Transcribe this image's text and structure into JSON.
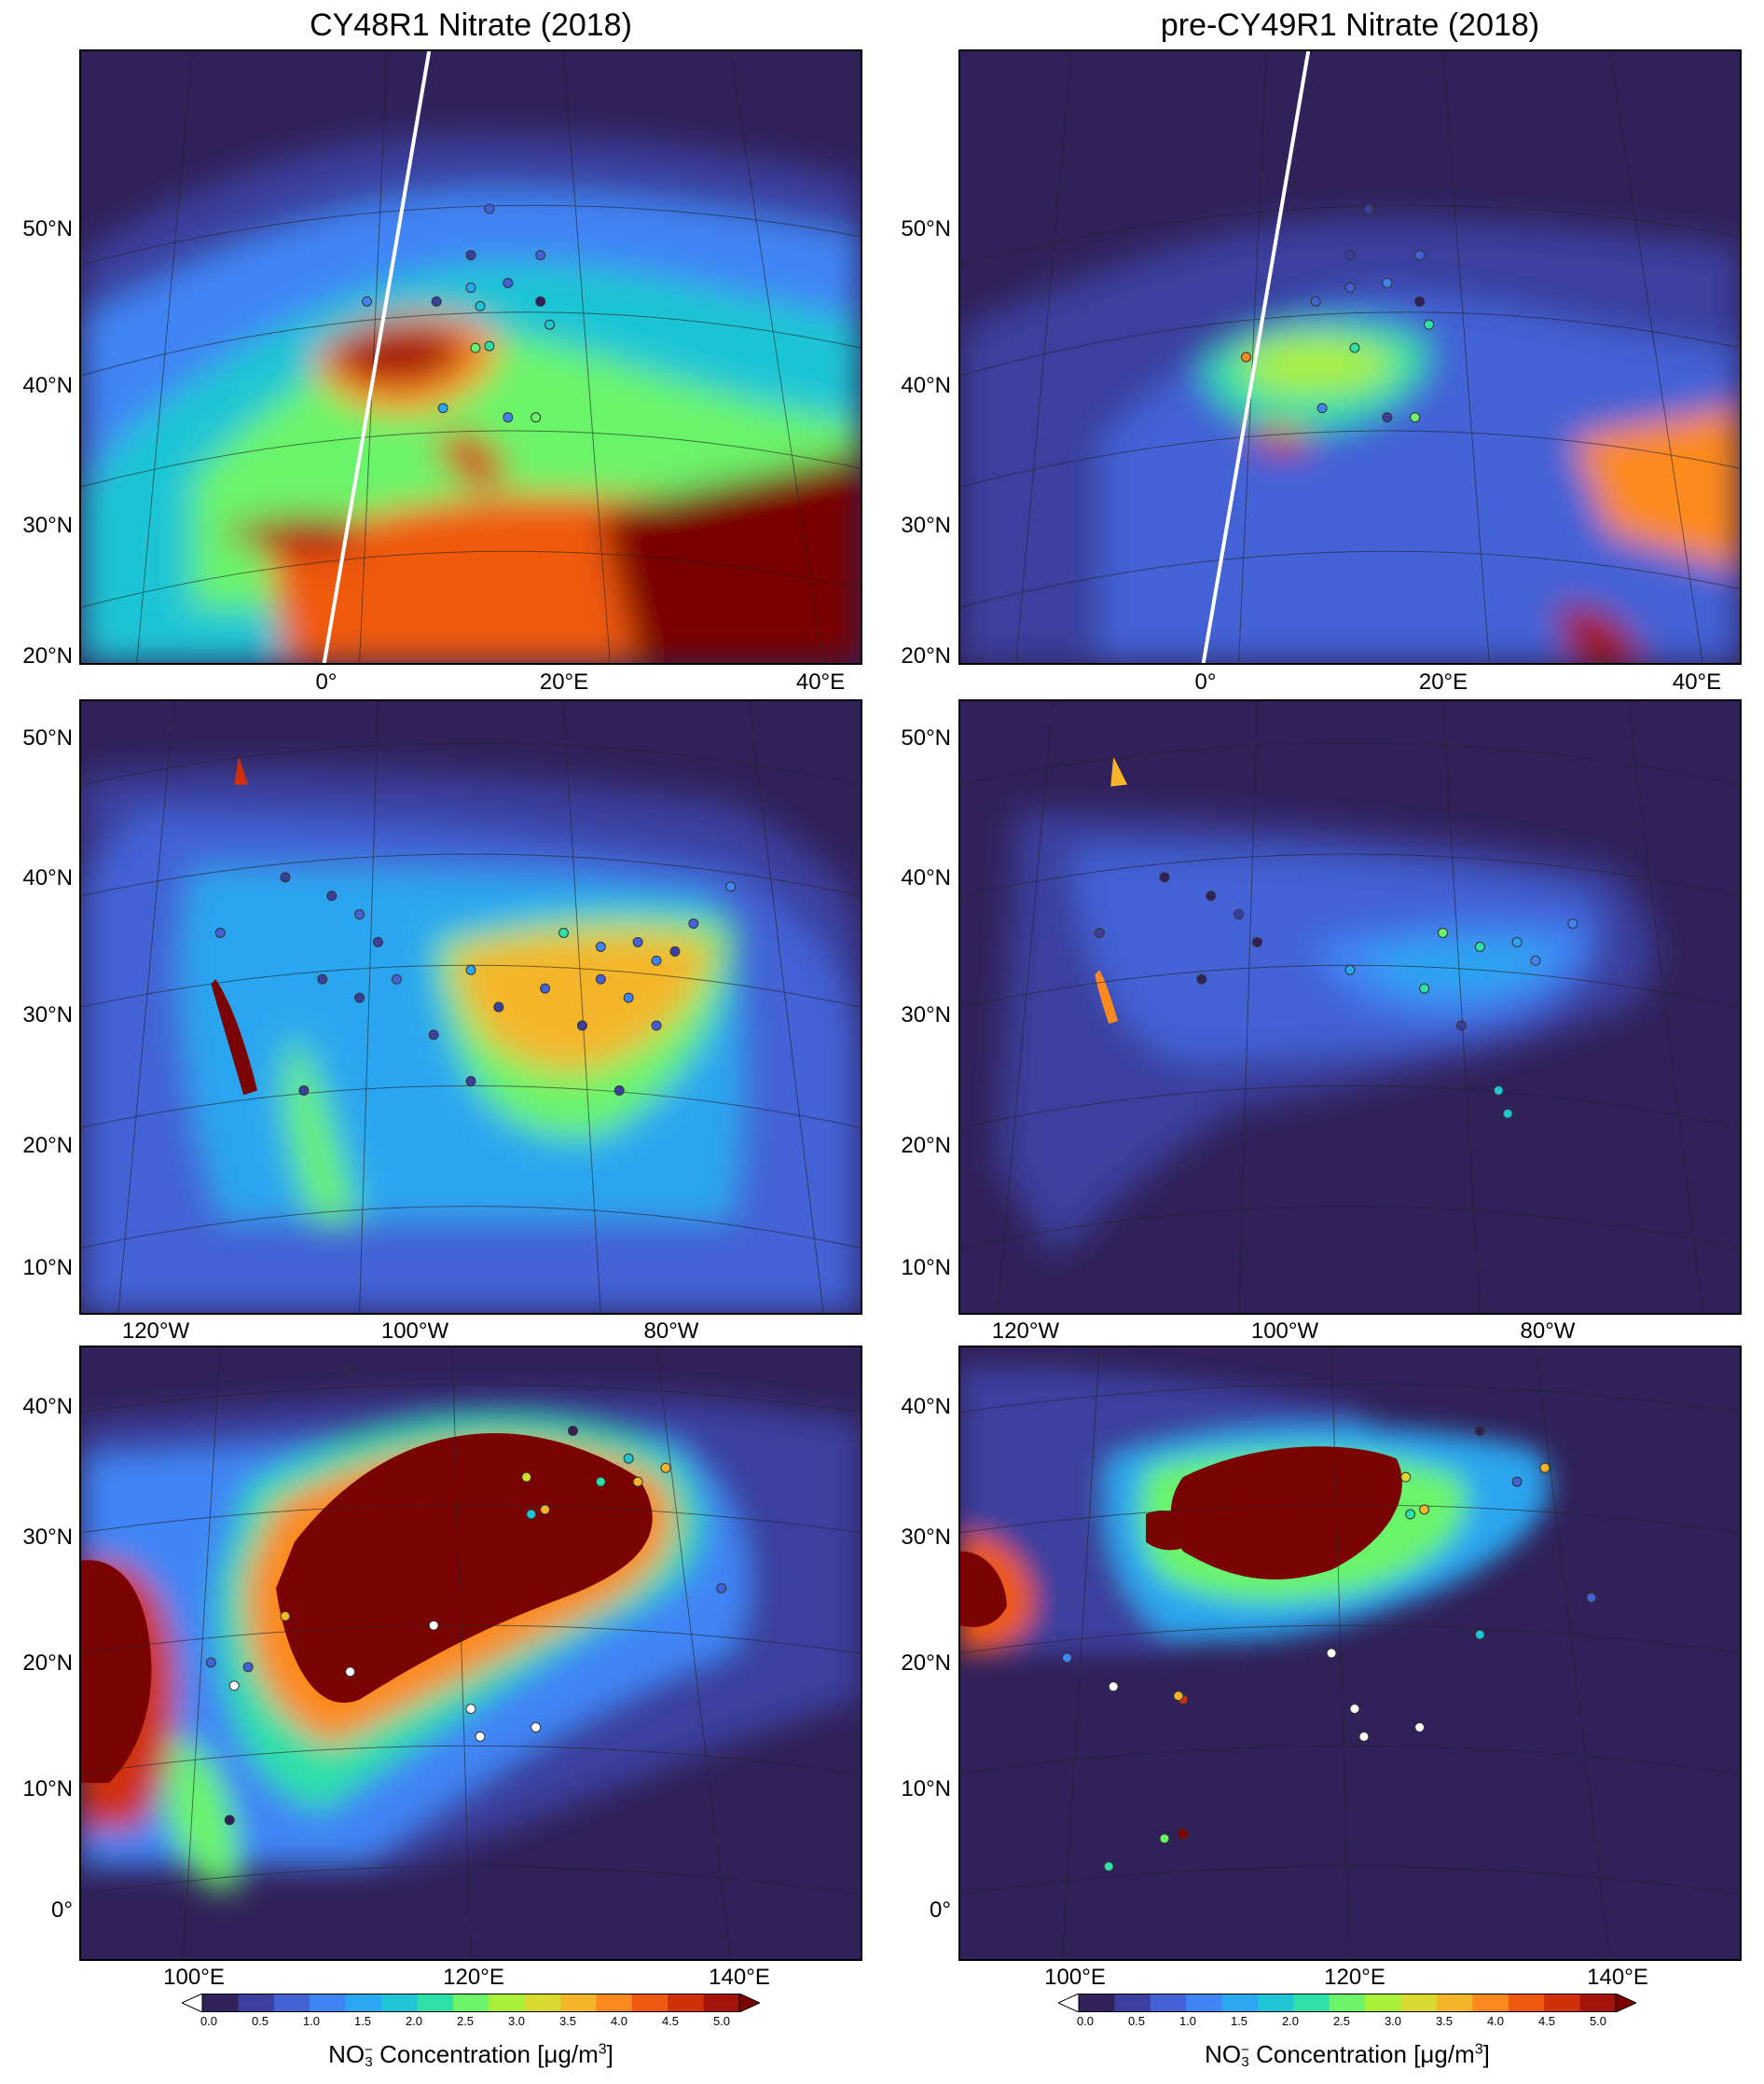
{
  "titles": {
    "left": "CY48R1 Nitrate (2018)",
    "right": "pre-CY49R1 Nitrate (2018)"
  },
  "europe": {
    "lat_labels": [
      "50°N",
      "40°N",
      "30°N",
      "20°N"
    ],
    "lon_labels": [
      "0°",
      "20°E",
      "40°E"
    ]
  },
  "america": {
    "lat_labels": [
      "50°N",
      "40°N",
      "30°N",
      "20°N",
      "10°N"
    ],
    "lon_labels": [
      "120°W",
      "100°W",
      "80°W"
    ]
  },
  "asia": {
    "lat_labels": [
      "40°N",
      "30°N",
      "20°N",
      "10°N",
      "0°"
    ],
    "lon_labels": [
      "100°E",
      "120°E",
      "140°E"
    ]
  },
  "colorbar": {
    "ticks": [
      "0.0",
      "0.5",
      "1.0",
      "1.5",
      "2.0",
      "2.5",
      "3.0",
      "3.5",
      "4.0",
      "4.5",
      "5.0"
    ],
    "label_prefix": "NO",
    "label_sub": "3",
    "label_sup": "−",
    "label_suffix": " Concentration [μg/m",
    "label_unit_sup": "3",
    "label_end": "]",
    "colors": [
      "#31215a",
      "#3b3f9e",
      "#4362d6",
      "#3f85f5",
      "#2ba6f0",
      "#1ec5d5",
      "#2ee0a8",
      "#6bf46a",
      "#aaf03a",
      "#d9d92f",
      "#f5b52a",
      "#fc8a1f",
      "#ef5a10",
      "#d0300a",
      "#a5130a",
      "#7a0403"
    ]
  }
}
